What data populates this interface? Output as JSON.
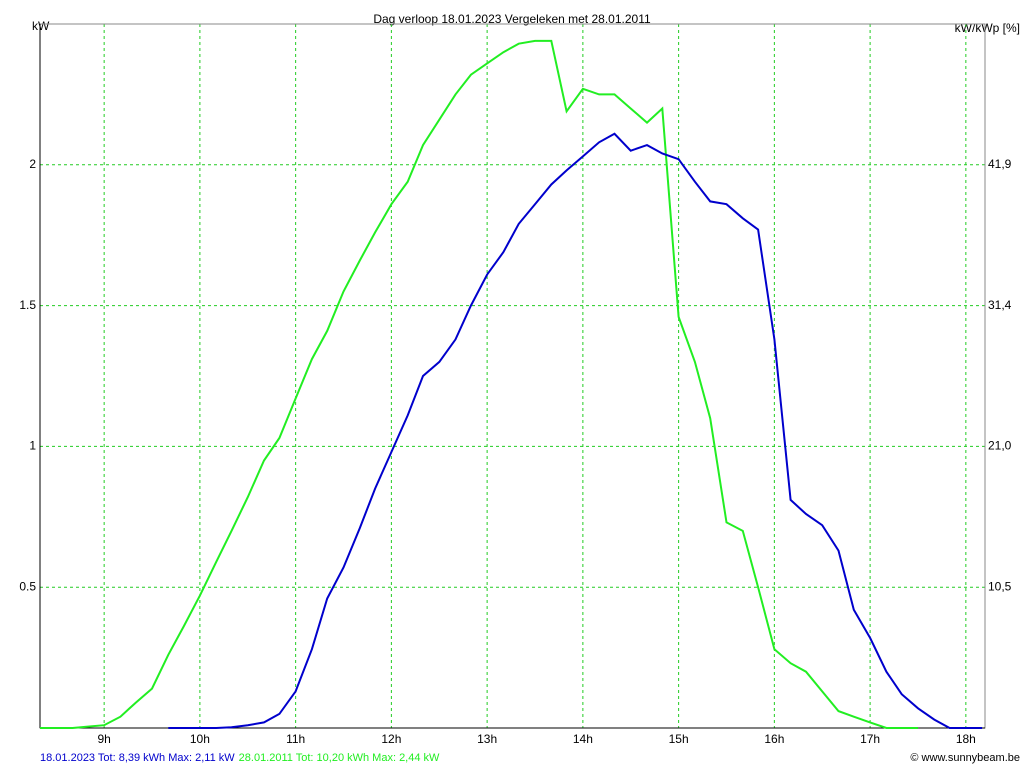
{
  "chart_data": {
    "type": "line",
    "title": "Dag  verloop 18.01.2023   Vergeleken met 28.01.2011",
    "y_label": "kW",
    "y2_label": "kW/kWp [%]",
    "credit": "© www.sunnybeam.be",
    "grid": true,
    "x": [
      8.33,
      8.5,
      8.67,
      8.83,
      9,
      9.17,
      9.33,
      9.5,
      9.67,
      9.83,
      10,
      10.17,
      10.33,
      10.5,
      10.67,
      10.83,
      11,
      11.17,
      11.33,
      11.5,
      11.67,
      11.83,
      12,
      12.17,
      12.33,
      12.5,
      12.67,
      12.83,
      13,
      13.17,
      13.33,
      13.5,
      13.67,
      13.83,
      14,
      14.17,
      14.33,
      14.5,
      14.67,
      14.83,
      15,
      15.17,
      15.33,
      15.5,
      15.67,
      15.83,
      16,
      16.17,
      16.33,
      16.5,
      16.67,
      16.83,
      17,
      17.17,
      17.33,
      17.5,
      17.67,
      17.83,
      18,
      18.17
    ],
    "xlim": [
      8.33,
      18.2
    ],
    "xticks": [
      {
        "value": 9,
        "label": "9h"
      },
      {
        "value": 10,
        "label": "10h"
      },
      {
        "value": 11,
        "label": "11h"
      },
      {
        "value": 12,
        "label": "12h"
      },
      {
        "value": 13,
        "label": "13h"
      },
      {
        "value": 14,
        "label": "14h"
      },
      {
        "value": 15,
        "label": "15h"
      },
      {
        "value": 16,
        "label": "16h"
      },
      {
        "value": 17,
        "label": "17h"
      },
      {
        "value": 18,
        "label": "18h"
      }
    ],
    "ylim": [
      0,
      2.5
    ],
    "yticks": [
      0.5,
      1,
      1.5,
      2
    ],
    "y2lim": [
      0,
      52.375
    ],
    "y2ticks": [
      {
        "value": 10.475,
        "label": "10,5"
      },
      {
        "value": 20.95,
        "label": "21,0"
      },
      {
        "value": 31.425,
        "label": "31,4"
      },
      {
        "value": 41.9,
        "label": "41,9"
      }
    ],
    "series": [
      {
        "name": "18.01.2023 Tot: 8,39 kWh Max: 2,11 kW",
        "color": "#0000cc",
        "values": [
          null,
          null,
          null,
          null,
          null,
          null,
          null,
          null,
          0,
          0,
          0,
          0,
          0.003,
          0.01,
          0.02,
          0.05,
          0.13,
          0.28,
          0.46,
          0.57,
          0.71,
          0.85,
          0.98,
          1.11,
          1.25,
          1.3,
          1.38,
          1.5,
          1.61,
          1.69,
          1.79,
          1.86,
          1.93,
          1.98,
          2.03,
          2.08,
          2.11,
          2.05,
          2.07,
          2.04,
          2.02,
          1.94,
          1.87,
          1.86,
          1.81,
          1.77,
          1.38,
          0.81,
          0.76,
          0.72,
          0.63,
          0.42,
          0.32,
          0.2,
          0.12,
          0.07,
          0.03,
          0,
          0,
          0
        ]
      },
      {
        "name": "28.01.2011 Tot: 10,20 kWh Max: 2,44 kW",
        "color": "#22ee22",
        "values": [
          0,
          0,
          0,
          0.005,
          0.01,
          0.04,
          0.09,
          0.14,
          0.26,
          0.36,
          0.47,
          0.59,
          0.7,
          0.82,
          0.95,
          1.03,
          1.17,
          1.31,
          1.41,
          1.55,
          1.66,
          1.76,
          1.86,
          1.94,
          2.07,
          2.16,
          2.25,
          2.32,
          2.36,
          2.4,
          2.43,
          2.44,
          2.44,
          2.19,
          2.27,
          2.25,
          2.25,
          2.2,
          2.15,
          2.2,
          1.46,
          1.3,
          1.1,
          0.73,
          0.7,
          0.5,
          0.28,
          0.23,
          0.2,
          0.13,
          0.06,
          0.04,
          0.02,
          0,
          0,
          0,
          null,
          null,
          null,
          null
        ]
      }
    ]
  }
}
